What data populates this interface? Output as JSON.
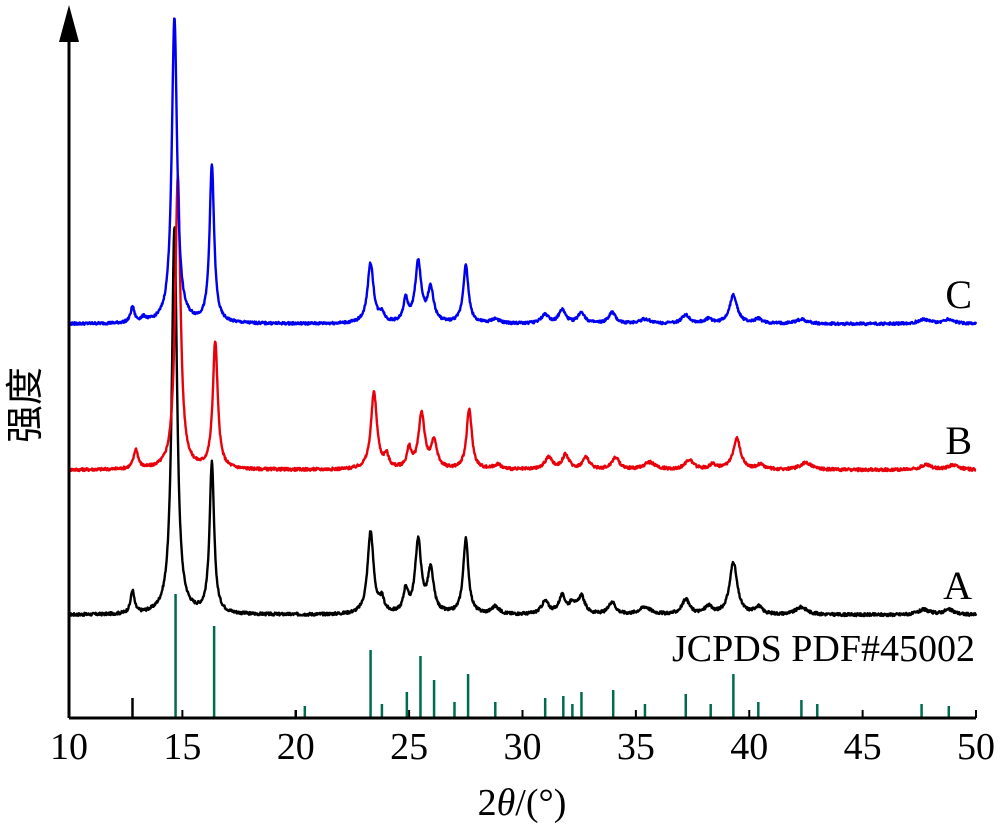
{
  "chart_data": {
    "type": "line",
    "xlabel_prefix": "2",
    "xlabel_symbol": "θ",
    "xlabel_suffix": "/(°)",
    "ylabel": "强度",
    "xlim": [
      10,
      50
    ],
    "xticks": [
      "10",
      "15",
      "20",
      "25",
      "30",
      "35",
      "40",
      "45",
      "50"
    ],
    "reference_label": "JCPDS PDF#45002",
    "reference_color": "#006b4f",
    "reference_lines": [
      {
        "x": 12.8,
        "h": 0.1,
        "color": "#000000"
      },
      {
        "x": 14.7,
        "h": 0.62
      },
      {
        "x": 16.4,
        "h": 0.46
      },
      {
        "x": 20.0,
        "h": 0.04,
        "color": "#000000"
      },
      {
        "x": 20.4,
        "h": 0.06
      },
      {
        "x": 23.3,
        "h": 0.34
      },
      {
        "x": 23.8,
        "h": 0.07
      },
      {
        "x": 24.9,
        "h": 0.13
      },
      {
        "x": 25.5,
        "h": 0.31
      },
      {
        "x": 26.1,
        "h": 0.19
      },
      {
        "x": 27.0,
        "h": 0.08
      },
      {
        "x": 27.6,
        "h": 0.22
      },
      {
        "x": 28.8,
        "h": 0.08
      },
      {
        "x": 31.0,
        "h": 0.1
      },
      {
        "x": 31.8,
        "h": 0.11
      },
      {
        "x": 32.2,
        "h": 0.07
      },
      {
        "x": 32.6,
        "h": 0.13
      },
      {
        "x": 34.0,
        "h": 0.14
      },
      {
        "x": 35.4,
        "h": 0.07
      },
      {
        "x": 37.2,
        "h": 0.12
      },
      {
        "x": 38.3,
        "h": 0.07
      },
      {
        "x": 39.3,
        "h": 0.22
      },
      {
        "x": 40.4,
        "h": 0.08
      },
      {
        "x": 42.3,
        "h": 0.09
      },
      {
        "x": 43.0,
        "h": 0.07
      },
      {
        "x": 47.6,
        "h": 0.07
      },
      {
        "x": 48.8,
        "h": 0.06
      }
    ],
    "series": [
      {
        "name": "A",
        "color": "#000000",
        "peaks": [
          [
            12.8,
            0.09,
            0.1
          ],
          [
            14.65,
            1.55,
            0.14
          ],
          [
            16.3,
            0.6,
            0.12
          ],
          [
            23.3,
            0.33,
            0.16
          ],
          [
            23.8,
            0.05,
            0.12
          ],
          [
            24.85,
            0.09,
            0.12
          ],
          [
            25.4,
            0.29,
            0.16
          ],
          [
            25.95,
            0.17,
            0.16
          ],
          [
            27.5,
            0.3,
            0.14
          ],
          [
            28.8,
            0.03,
            0.2
          ],
          [
            31.0,
            0.05,
            0.2
          ],
          [
            31.75,
            0.07,
            0.18
          ],
          [
            32.2,
            0.04,
            0.15
          ],
          [
            32.6,
            0.07,
            0.18
          ],
          [
            33.95,
            0.05,
            0.18
          ],
          [
            35.4,
            0.03,
            0.3
          ],
          [
            37.2,
            0.06,
            0.2
          ],
          [
            38.2,
            0.03,
            0.2
          ],
          [
            39.3,
            0.21,
            0.2
          ],
          [
            40.4,
            0.03,
            0.2
          ],
          [
            42.3,
            0.03,
            0.3
          ],
          [
            47.7,
            0.02,
            0.3
          ],
          [
            48.8,
            0.02,
            0.3
          ]
        ]
      },
      {
        "name": "B",
        "color": "#e8000b",
        "peaks": [
          [
            12.95,
            0.08,
            0.12
          ],
          [
            14.8,
            1.22,
            0.14
          ],
          [
            16.45,
            0.53,
            0.13
          ],
          [
            23.45,
            0.32,
            0.16
          ],
          [
            24.0,
            0.05,
            0.12
          ],
          [
            25.0,
            0.08,
            0.12
          ],
          [
            25.55,
            0.23,
            0.16
          ],
          [
            26.1,
            0.11,
            0.16
          ],
          [
            27.65,
            0.25,
            0.14
          ],
          [
            28.9,
            0.02,
            0.2
          ],
          [
            31.15,
            0.05,
            0.2
          ],
          [
            31.9,
            0.06,
            0.18
          ],
          [
            32.8,
            0.05,
            0.18
          ],
          [
            34.1,
            0.05,
            0.2
          ],
          [
            35.6,
            0.03,
            0.3
          ],
          [
            37.35,
            0.04,
            0.22
          ],
          [
            38.4,
            0.02,
            0.2
          ],
          [
            39.45,
            0.13,
            0.2
          ],
          [
            40.5,
            0.02,
            0.2
          ],
          [
            42.5,
            0.03,
            0.3
          ],
          [
            47.8,
            0.02,
            0.3
          ],
          [
            49.0,
            0.02,
            0.3
          ]
        ]
      },
      {
        "name": "C",
        "color": "#0000f0",
        "peaks": [
          [
            12.8,
            0.07,
            0.1
          ],
          [
            13.3,
            0.02,
            0.15
          ],
          [
            14.65,
            1.38,
            0.14
          ],
          [
            16.3,
            0.71,
            0.12
          ],
          [
            23.3,
            0.27,
            0.16
          ],
          [
            23.8,
            0.04,
            0.12
          ],
          [
            24.85,
            0.1,
            0.12
          ],
          [
            25.4,
            0.27,
            0.16
          ],
          [
            25.95,
            0.15,
            0.16
          ],
          [
            27.5,
            0.26,
            0.14
          ],
          [
            28.8,
            0.02,
            0.2
          ],
          [
            31.0,
            0.04,
            0.2
          ],
          [
            31.75,
            0.06,
            0.18
          ],
          [
            32.6,
            0.05,
            0.18
          ],
          [
            33.95,
            0.05,
            0.18
          ],
          [
            35.4,
            0.02,
            0.3
          ],
          [
            37.2,
            0.04,
            0.2
          ],
          [
            38.2,
            0.02,
            0.2
          ],
          [
            39.3,
            0.13,
            0.2
          ],
          [
            40.4,
            0.02,
            0.2
          ],
          [
            42.3,
            0.02,
            0.3
          ],
          [
            47.7,
            0.02,
            0.3
          ],
          [
            48.8,
            0.02,
            0.3
          ]
        ]
      }
    ]
  }
}
